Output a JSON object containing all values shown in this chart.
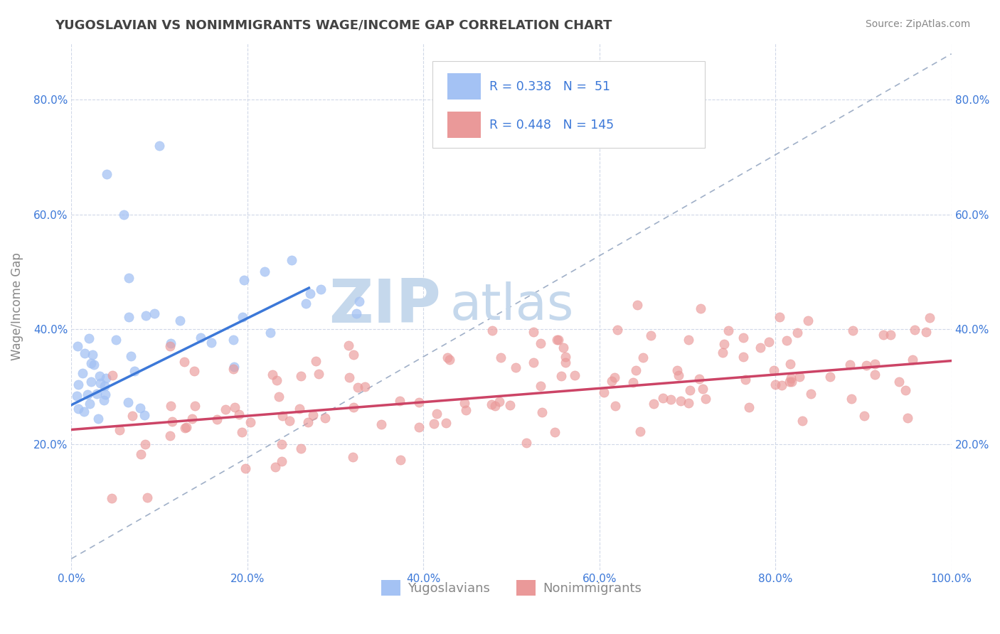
{
  "title": "YUGOSLAVIAN VS NONIMMIGRANTS WAGE/INCOME GAP CORRELATION CHART",
  "source_text": "Source: ZipAtlas.com",
  "ylabel": "Wage/Income Gap",
  "xlim": [
    0.0,
    1.0
  ],
  "ylim": [
    -0.02,
    0.9
  ],
  "x_tick_labels": [
    "0.0%",
    "20.0%",
    "40.0%",
    "60.0%",
    "80.0%",
    "100.0%"
  ],
  "x_tick_vals": [
    0.0,
    0.2,
    0.4,
    0.6,
    0.8,
    1.0
  ],
  "y_tick_labels": [
    "20.0%",
    "40.0%",
    "60.0%",
    "80.0%"
  ],
  "y_tick_vals": [
    0.2,
    0.4,
    0.6,
    0.8
  ],
  "blue_color": "#a4c2f4",
  "pink_color": "#ea9999",
  "blue_line_color": "#3c78d8",
  "pink_line_color": "#cc4466",
  "dash_line_color": "#a0b0c8",
  "title_color": "#434343",
  "source_color": "#888888",
  "legend_text_color": "#3c78d8",
  "axis_label_color": "#888888",
  "tick_color": "#3c78d8",
  "grid_color": "#d0d8e8",
  "background_color": "#ffffff",
  "watermark_zip": "ZIP",
  "watermark_atlas": "atlas",
  "watermark_color_zip": "#c5d8ec",
  "watermark_color_atlas": "#c5d8ec",
  "legend1_label": "Yugoslavians",
  "legend2_label": "Nonimmigrants",
  "R1": 0.338,
  "N1": 51,
  "R2": 0.448,
  "N2": 145,
  "blue_line_x": [
    0.0,
    0.27
  ],
  "blue_line_y": [
    0.268,
    0.472
  ],
  "pink_line_x": [
    0.0,
    1.0
  ],
  "pink_line_y": [
    0.225,
    0.345
  ],
  "dash_line_x": [
    0.0,
    1.0
  ],
  "dash_line_y": [
    0.0,
    0.88
  ]
}
